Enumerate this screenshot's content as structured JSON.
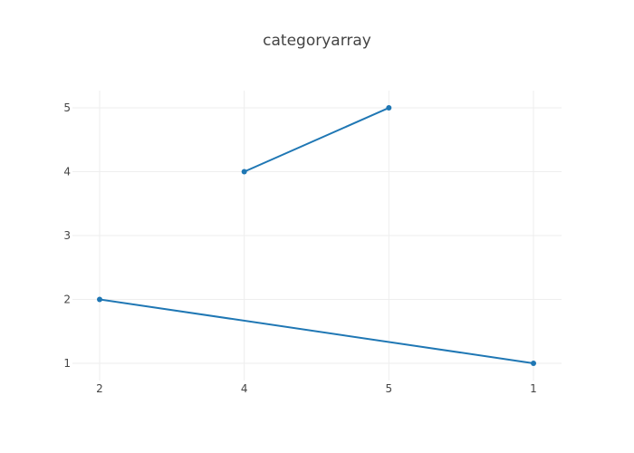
{
  "chart_data": {
    "type": "line",
    "title": "categoryarray",
    "xlabel": "",
    "ylabel": "",
    "categories": [
      "2",
      "4",
      "5",
      "1"
    ],
    "series": [
      {
        "color": "#1f77b4",
        "points": [
          {
            "x": "2",
            "y": 2
          },
          {
            "x": "1",
            "y": 1
          },
          null,
          {
            "x": "4",
            "y": 4
          },
          {
            "x": "5",
            "y": 5
          }
        ]
      }
    ],
    "y_ticks": [
      1,
      2,
      3,
      4,
      5
    ],
    "ylim": [
      0.73,
      5.27
    ],
    "grid": true,
    "legend": "none"
  }
}
